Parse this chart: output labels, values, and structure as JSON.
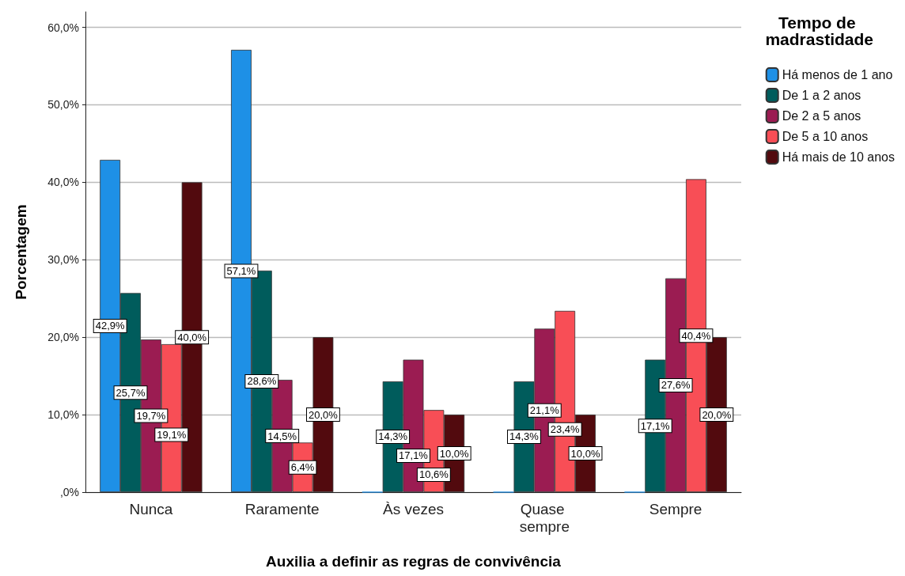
{
  "chart_data": {
    "type": "bar",
    "xlabel": "Auxilia a definir as regras de convivência",
    "ylabel": "Porcentagem",
    "legend_title": "Tempo de madrastidade",
    "legend": "top right",
    "grid": "y",
    "categories": [
      "Nunca",
      "Raramente",
      "Às vezes",
      "Quase sempre",
      "Sempre"
    ],
    "ylim": [
      0,
      62
    ],
    "yticks": [
      {
        "value": 0,
        "label": ",0%"
      },
      {
        "value": 10,
        "label": "10,0%"
      },
      {
        "value": 20,
        "label": "20,0%"
      },
      {
        "value": 30,
        "label": "30,0%"
      },
      {
        "value": 40,
        "label": "40,0%"
      },
      {
        "value": 50,
        "label": "50,0%"
      },
      {
        "value": 60,
        "label": "60,0%"
      }
    ],
    "series": [
      {
        "name": "Há menos de 1 ano",
        "color": "#1e90e6",
        "values": [
          42.9,
          57.1,
          0,
          0,
          0
        ],
        "value_labels": [
          "42,9%",
          "57,1%",
          null,
          null,
          null
        ]
      },
      {
        "name": "De 1 a 2 anos",
        "color": "#005c5c",
        "values": [
          25.7,
          28.6,
          14.3,
          14.3,
          17.1
        ],
        "value_labels": [
          "25,7%",
          "28,6%",
          "14,3%",
          "14,3%",
          "17,1%"
        ]
      },
      {
        "name": "De 2 a 5 anos",
        "color": "#9b1c52",
        "values": [
          19.7,
          14.5,
          17.1,
          21.1,
          27.6
        ],
        "value_labels": [
          "19,7%",
          "14,5%",
          "17,1%",
          "21,1%",
          "27,6%"
        ]
      },
      {
        "name": "De 5 a 10 anos",
        "color": "#f84e56",
        "values": [
          19.1,
          6.4,
          10.6,
          23.4,
          40.4
        ],
        "value_labels": [
          "19,1%",
          "6,4%",
          "10,6%",
          "23,4%",
          "40,4%"
        ]
      },
      {
        "name": "Há mais de 10 anos",
        "color": "#520a0e",
        "values": [
          40.0,
          20.0,
          10.0,
          10.0,
          20.0
        ],
        "value_labels": [
          "40,0%",
          "20,0%",
          "10,0%",
          "10,0%",
          "20,0%"
        ]
      }
    ]
  }
}
